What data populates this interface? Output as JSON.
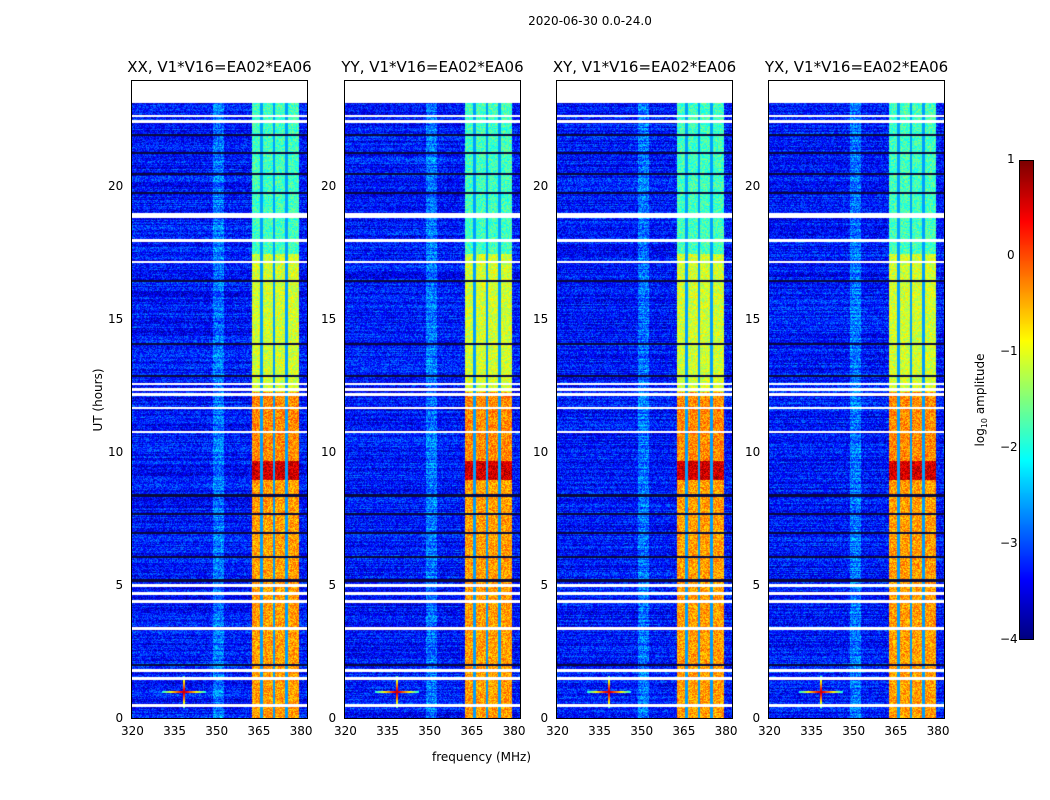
{
  "suptitle": "2020-06-30 0.0-24.0",
  "chart_data": {
    "type": "heatmap",
    "panels": [
      {
        "title": "XX, V1*V16=EA02*EA06"
      },
      {
        "title": "YY, V1*V16=EA02*EA06"
      },
      {
        "title": "XY, V1*V16=EA02*EA06"
      },
      {
        "title": "YX, V1*V16=EA02*EA06"
      }
    ],
    "xlabel": "frequency (MHz)",
    "ylabel": "UT (hours)",
    "xlim": [
      320,
      383
    ],
    "ylim": [
      0,
      24
    ],
    "xticks": [
      "320",
      "335",
      "350",
      "365",
      "380"
    ],
    "xtick_values": [
      320,
      335,
      350,
      365,
      380
    ],
    "yticks": [
      "0",
      "5",
      "10",
      "15",
      "20"
    ],
    "ytick_values": [
      0,
      5,
      10,
      15,
      20
    ],
    "data_time_range": [
      0,
      23.2
    ],
    "colorbar": {
      "label": "log₁₀ amplitude",
      "ticks": [
        "1",
        "0",
        "−1",
        "−2",
        "−3",
        "−4"
      ],
      "tick_values": [
        1,
        0,
        -1,
        -2,
        -3,
        -4
      ],
      "range": [
        -4,
        1
      ],
      "colormap": "jet"
    },
    "background_level": -3.3,
    "bright_band_mhz": [
      363,
      380
    ],
    "band_gaps_mhz": [
      366.5,
      371,
      375.5
    ],
    "band_levels": [
      {
        "t": [
          0,
          4.3
        ],
        "level": -0.4
      },
      {
        "t": [
          4.3,
          9.0
        ],
        "level": -0.4
      },
      {
        "t": [
          9.0,
          9.7
        ],
        "level": 0.6
      },
      {
        "t": [
          9.7,
          12.3
        ],
        "level": -0.3
      },
      {
        "t": [
          12.3,
          17.5
        ],
        "level": -1.1
      },
      {
        "t": [
          17.5,
          23.2
        ],
        "level": -1.8
      }
    ],
    "point_source": {
      "freq": 338.5,
      "time": 1.0,
      "level": 0.7
    },
    "flagged_times_white": [
      0.5,
      1.5,
      1.8,
      3.4,
      4.4,
      4.7,
      5.0,
      10.8,
      11.7,
      12.2,
      12.4,
      12.6,
      17.2,
      18.0,
      18.9,
      19.0,
      22.5,
      22.7
    ],
    "flagged_times_dark": [
      2.0,
      5.2,
      6.1,
      7.0,
      7.7,
      8.4,
      12.9,
      14.1,
      16.5,
      19.8,
      20.5,
      21.3,
      22.0
    ]
  }
}
